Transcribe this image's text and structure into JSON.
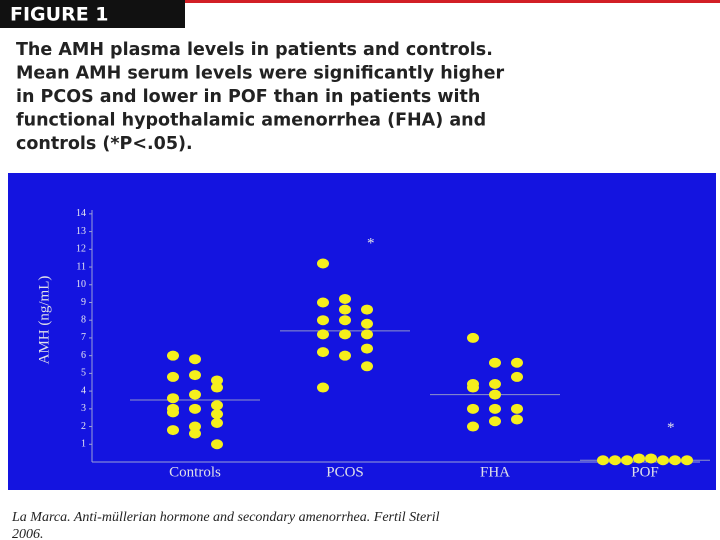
{
  "figure_label": "FIGURE 1",
  "caption": [
    "The AMH plasma levels in patients and controls.",
    "Mean AMH serum levels were significantly higher",
    "in PCOS and lower in POF than in patients with",
    "functional hypothalamic amenorrhea (FHA) and",
    "controls (*P<.05)."
  ],
  "citation": [
    "La Marca. Anti-müllerian hormone and secondary amenorrhea. Fertil Steril",
    "2006."
  ],
  "chart_data": {
    "type": "dot",
    "y_label": "AMH (ng/mL)",
    "categories": [
      "Controls",
      "PCOS",
      "FHA",
      "POF"
    ],
    "points": [
      [
        6.0,
        5.8,
        4.6,
        4.8,
        4.9,
        4.2,
        3.6,
        3.8,
        2.7,
        2.8,
        3.0,
        3.2,
        3.0,
        2.0,
        2.2,
        1.8,
        1.6,
        1.0
      ],
      [
        11.2,
        9.2,
        8.6,
        9.0,
        8.6,
        7.8,
        8.0,
        8.0,
        7.2,
        7.2,
        7.2,
        6.4,
        6.2,
        6.0,
        5.4,
        4.2
      ],
      [
        7.0,
        5.6,
        5.6,
        4.4,
        4.4,
        4.8,
        4.2,
        3.8,
        3.0,
        3.0,
        3.0,
        2.4,
        2.0,
        2.3
      ],
      [
        0.1,
        0.1,
        0.1,
        0.2,
        0.2,
        0.1,
        0.1,
        0.1
      ]
    ],
    "means": [
      3.5,
      7.4,
      3.8,
      0.1
    ],
    "color": "#f5ef1c",
    "mean_color": "#8f93c8",
    "annotations": [
      {
        "text": "*",
        "category": "PCOS",
        "y": 12.3
      },
      {
        "text": "*",
        "category": "POF",
        "y": 1.9
      }
    ],
    "ylim": [
      0,
      14.5
    ],
    "yticks": [
      1,
      2,
      3,
      4,
      5,
      6,
      7,
      8,
      9,
      10,
      11,
      12,
      13,
      14
    ]
  }
}
